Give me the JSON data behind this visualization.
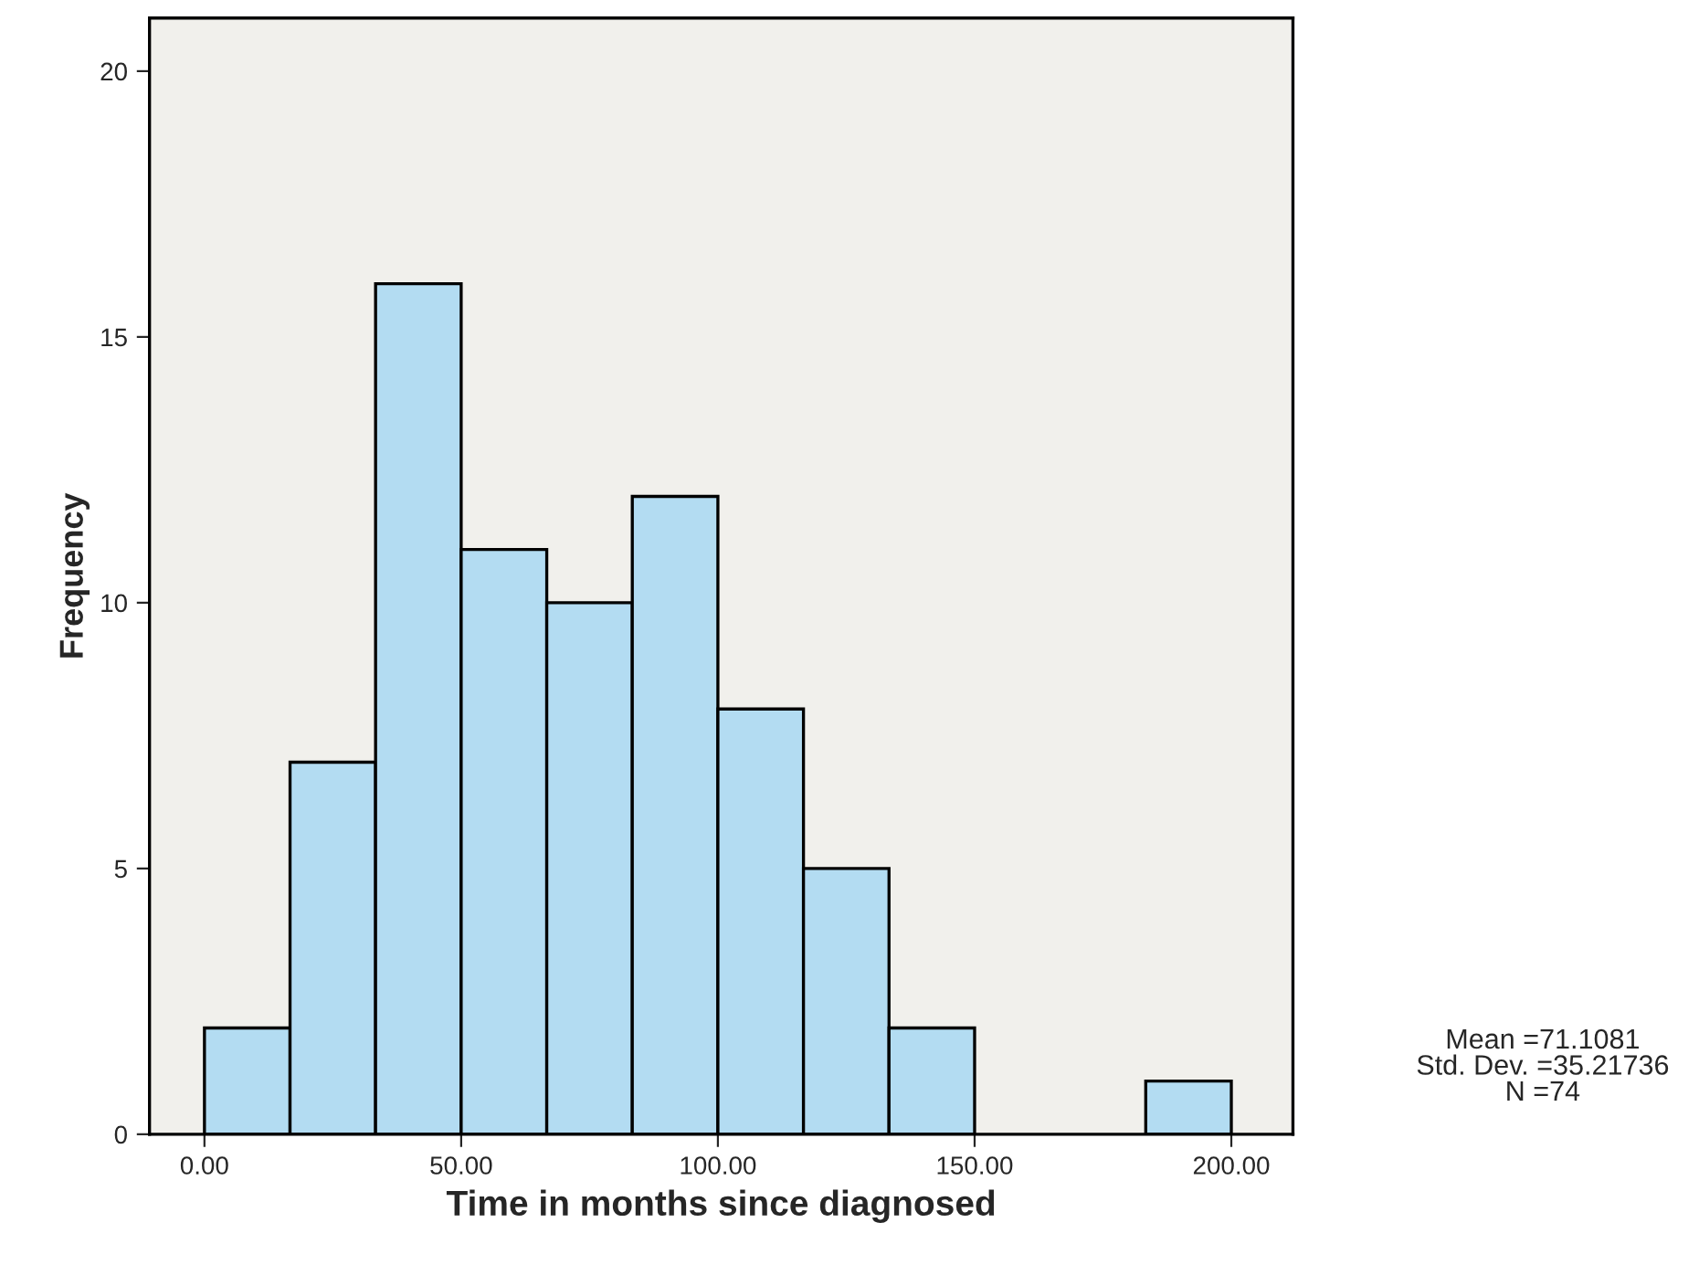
{
  "chart_data": {
    "type": "histogram",
    "xlabel": "Time in months since diagnosed",
    "ylabel": "Frequency",
    "bins": [
      0,
      16.67,
      33.33,
      50,
      66.67,
      83.33,
      100,
      116.67,
      133.33,
      150,
      166.67,
      183.33,
      200
    ],
    "values": [
      2,
      7,
      16,
      11,
      10,
      12,
      8,
      5,
      2,
      0,
      0,
      1
    ],
    "color": "#b3dcf2",
    "xlim": [
      -10.7,
      212
    ],
    "xticks": [
      {
        "value": 0,
        "label": "0.00"
      },
      {
        "value": 50,
        "label": "50.00"
      },
      {
        "value": 100,
        "label": "100.00"
      },
      {
        "value": 150,
        "label": "150.00"
      },
      {
        "value": 200,
        "label": "200.00"
      }
    ],
    "ylim": [
      0,
      21
    ],
    "yticks": [
      0,
      5,
      10,
      15,
      20
    ],
    "grid": false,
    "annotations": [
      "Mean =71.1081\nStd. Dev. =35.21736\nN =74"
    ]
  }
}
